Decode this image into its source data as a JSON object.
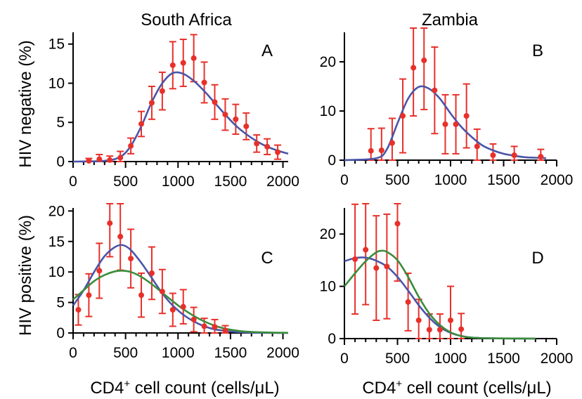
{
  "figure": {
    "col_titles": [
      "South Africa",
      "Zambia"
    ],
    "row_labels": [
      "HIV negative (%)",
      "HIV positive (%)"
    ],
    "xlabel_main": "CD4",
    "xlabel_sup": "+",
    "xlabel_rest": " cell count (cells/μL)"
  },
  "colors": {
    "points": "#e8302a",
    "fit_blue": "#4a55a8",
    "fit_green": "#3b8c3b",
    "axis": "#000000"
  },
  "chart_data": [
    {
      "panel": "A",
      "type": "scatter",
      "country": "South Africa",
      "group": "HIV negative",
      "xlim": [
        0,
        2050
      ],
      "ylim": [
        0,
        16.5
      ],
      "xticks": [
        0,
        500,
        1000,
        1500,
        2000
      ],
      "yticks": [
        0,
        5,
        10,
        15
      ],
      "points": [
        {
          "x": 150,
          "y": 0.1,
          "err": 0.3
        },
        {
          "x": 250,
          "y": 0.3,
          "err": 0.6
        },
        {
          "x": 350,
          "y": 0.2,
          "err": 0.5
        },
        {
          "x": 450,
          "y": 0.5,
          "err": 0.8
        },
        {
          "x": 550,
          "y": 2.0,
          "err": 1.0
        },
        {
          "x": 650,
          "y": 4.8,
          "err": 1.6
        },
        {
          "x": 750,
          "y": 7.5,
          "err": 2.1
        },
        {
          "x": 850,
          "y": 9.0,
          "err": 2.4
        },
        {
          "x": 950,
          "y": 12.3,
          "err": 3.0
        },
        {
          "x": 1050,
          "y": 12.6,
          "err": 3.0
        },
        {
          "x": 1150,
          "y": 13.2,
          "err": 3.0
        },
        {
          "x": 1250,
          "y": 10.1,
          "err": 2.6
        },
        {
          "x": 1350,
          "y": 7.6,
          "err": 2.2
        },
        {
          "x": 1450,
          "y": 6.0,
          "err": 2.0
        },
        {
          "x": 1550,
          "y": 5.4,
          "err": 1.9
        },
        {
          "x": 1650,
          "y": 4.5,
          "err": 1.7
        },
        {
          "x": 1750,
          "y": 2.3,
          "err": 1.1
        },
        {
          "x": 1850,
          "y": 1.9,
          "err": 1.0
        },
        {
          "x": 1950,
          "y": 1.2,
          "err": 0.9
        }
      ],
      "fits": [
        {
          "color": "blue",
          "points": [
            [
              0,
              0
            ],
            [
              300,
              0.1
            ],
            [
              450,
              0.6
            ],
            [
              550,
              2.0
            ],
            [
              650,
              4.5
            ],
            [
              750,
              7.6
            ],
            [
              850,
              10.0
            ],
            [
              950,
              11.3
            ],
            [
              1050,
              11.2
            ],
            [
              1150,
              10.3
            ],
            [
              1250,
              9.0
            ],
            [
              1350,
              7.5
            ],
            [
              1450,
              6.0
            ],
            [
              1550,
              4.6
            ],
            [
              1650,
              3.5
            ],
            [
              1750,
              2.6
            ],
            [
              1850,
              1.9
            ],
            [
              1950,
              1.4
            ],
            [
              2050,
              1.0
            ]
          ]
        }
      ]
    },
    {
      "panel": "B",
      "type": "scatter",
      "country": "Zambia",
      "group": "HIV negative",
      "xlim": [
        0,
        2000
      ],
      "ylim": [
        0,
        26
      ],
      "xticks": [
        0,
        500,
        1000,
        1500,
        2000
      ],
      "yticks": [
        0,
        10,
        20
      ],
      "points": [
        {
          "x": 250,
          "y": 1.9,
          "err": 4.5
        },
        {
          "x": 350,
          "y": 2.0,
          "err": 4.5
        },
        {
          "x": 450,
          "y": 3.5,
          "err": 5.0
        },
        {
          "x": 550,
          "y": 9.0,
          "err": 7.5
        },
        {
          "x": 650,
          "y": 18.8,
          "err": 9.8
        },
        {
          "x": 750,
          "y": 20.3,
          "err": 10.0
        },
        {
          "x": 850,
          "y": 14.2,
          "err": 8.8
        },
        {
          "x": 950,
          "y": 7.3,
          "err": 6.0
        },
        {
          "x": 1050,
          "y": 7.3,
          "err": 6.0
        },
        {
          "x": 1150,
          "y": 9.0,
          "err": 6.5
        },
        {
          "x": 1250,
          "y": 2.8,
          "err": 3.5
        },
        {
          "x": 1400,
          "y": 1.0,
          "err": 2.3
        },
        {
          "x": 1600,
          "y": 1.0,
          "err": 1.8
        },
        {
          "x": 1850,
          "y": 0.7,
          "err": 1.5
        }
      ],
      "fits": [
        {
          "color": "blue",
          "points": [
            [
              0,
              0
            ],
            [
              300,
              0.4
            ],
            [
              400,
              2.2
            ],
            [
              500,
              7.5
            ],
            [
              600,
              12.5
            ],
            [
              700,
              14.9
            ],
            [
              800,
              14.5
            ],
            [
              900,
              12.5
            ],
            [
              1000,
              9.5
            ],
            [
              1100,
              6.8
            ],
            [
              1200,
              4.7
            ],
            [
              1300,
              3.0
            ],
            [
              1400,
              2.0
            ],
            [
              1500,
              1.3
            ],
            [
              1600,
              0.9
            ],
            [
              1700,
              0.6
            ],
            [
              1800,
              0.5
            ],
            [
              1900,
              0.4
            ]
          ]
        }
      ]
    },
    {
      "panel": "C",
      "type": "scatter",
      "country": "South Africa",
      "group": "HIV positive",
      "xlim": [
        0,
        2050
      ],
      "ylim": [
        0,
        20.5
      ],
      "xticks": [
        0,
        500,
        1000,
        1500,
        2000
      ],
      "yticks": [
        0,
        5,
        10,
        15,
        20
      ],
      "points": [
        {
          "x": 50,
          "y": 3.8,
          "err": 2.5
        },
        {
          "x": 150,
          "y": 6.2,
          "err": 3.5
        },
        {
          "x": 250,
          "y": 10.2,
          "err": 4.5
        },
        {
          "x": 350,
          "y": 18.0,
          "err": 5.5
        },
        {
          "x": 450,
          "y": 15.8,
          "err": 5.5
        },
        {
          "x": 550,
          "y": 12.2,
          "err": 4.8
        },
        {
          "x": 650,
          "y": 6.2,
          "err": 3.6
        },
        {
          "x": 750,
          "y": 9.8,
          "err": 4.3
        },
        {
          "x": 850,
          "y": 6.8,
          "err": 3.6
        },
        {
          "x": 950,
          "y": 3.8,
          "err": 2.7
        },
        {
          "x": 1050,
          "y": 4.3,
          "err": 2.8
        },
        {
          "x": 1150,
          "y": 2.2,
          "err": 2.0
        },
        {
          "x": 1250,
          "y": 1.1,
          "err": 1.3
        },
        {
          "x": 1350,
          "y": 1.0,
          "err": 1.2
        },
        {
          "x": 1450,
          "y": 0.4,
          "err": 0.8
        }
      ],
      "fits": [
        {
          "color": "blue",
          "points": [
            [
              0,
              4.5
            ],
            [
              100,
              7.0
            ],
            [
              200,
              10.0
            ],
            [
              300,
              12.6
            ],
            [
              400,
              14.1
            ],
            [
              475,
              14.4
            ],
            [
              550,
              13.6
            ],
            [
              650,
              11.5
            ],
            [
              750,
              9.0
            ],
            [
              850,
              6.5
            ],
            [
              950,
              4.5
            ],
            [
              1050,
              3.0
            ],
            [
              1150,
              1.9
            ],
            [
              1250,
              1.1
            ],
            [
              1350,
              0.6
            ],
            [
              1500,
              0.25
            ],
            [
              1700,
              0.05
            ],
            [
              2050,
              0
            ]
          ]
        },
        {
          "color": "green",
          "points": [
            [
              0,
              5.5
            ],
            [
              100,
              7.0
            ],
            [
              200,
              8.5
            ],
            [
              300,
              9.5
            ],
            [
              400,
              10.1
            ],
            [
              475,
              10.2
            ],
            [
              550,
              10.0
            ],
            [
              650,
              9.2
            ],
            [
              750,
              8.0
            ],
            [
              850,
              6.6
            ],
            [
              950,
              5.2
            ],
            [
              1050,
              3.9
            ],
            [
              1150,
              2.8
            ],
            [
              1250,
              1.9
            ],
            [
              1350,
              1.2
            ],
            [
              1450,
              0.7
            ],
            [
              1600,
              0.3
            ],
            [
              1800,
              0.1
            ],
            [
              2050,
              0.02
            ]
          ]
        }
      ]
    },
    {
      "panel": "D",
      "type": "scatter",
      "country": "Zambia",
      "group": "HIV positive",
      "xlim": [
        0,
        2000
      ],
      "ylim": [
        0,
        25
      ],
      "xticks": [
        0,
        500,
        1000,
        1500,
        2000
      ],
      "yticks": [
        0,
        10,
        20
      ],
      "points": [
        {
          "x": 100,
          "y": 15.2,
          "err": 10.5
        },
        {
          "x": 200,
          "y": 17.0,
          "err": 10.5
        },
        {
          "x": 300,
          "y": 13.5,
          "err": 10.0
        },
        {
          "x": 400,
          "y": 13.8,
          "err": 10.0
        },
        {
          "x": 500,
          "y": 22.0,
          "err": 11.0
        },
        {
          "x": 600,
          "y": 7.0,
          "err": 5.5
        },
        {
          "x": 700,
          "y": 3.5,
          "err": 4.0
        },
        {
          "x": 800,
          "y": 1.7,
          "err": 3.0
        },
        {
          "x": 900,
          "y": 1.7,
          "err": 3.0
        },
        {
          "x": 1000,
          "y": 3.5,
          "err": 6.5
        },
        {
          "x": 1100,
          "y": 1.8,
          "err": 3.0
        }
      ],
      "fits": [
        {
          "color": "blue",
          "points": [
            [
              0,
              14.8
            ],
            [
              100,
              15.4
            ],
            [
              200,
              15.5
            ],
            [
              300,
              14.9
            ],
            [
              400,
              13.8
            ],
            [
              500,
              11.8
            ],
            [
              600,
              9.2
            ],
            [
              700,
              6.4
            ],
            [
              800,
              4.0
            ],
            [
              900,
              2.2
            ],
            [
              1000,
              1.1
            ],
            [
              1100,
              0.5
            ],
            [
              1200,
              0.2
            ],
            [
              1400,
              0.05
            ],
            [
              1800,
              0
            ]
          ]
        },
        {
          "color": "green",
          "points": [
            [
              0,
              10.0
            ],
            [
              100,
              12.5
            ],
            [
              200,
              14.8
            ],
            [
              300,
              16.5
            ],
            [
              350,
              16.8
            ],
            [
              400,
              16.6
            ],
            [
              500,
              15.0
            ],
            [
              600,
              11.8
            ],
            [
              700,
              8.0
            ],
            [
              800,
              4.8
            ],
            [
              900,
              2.6
            ],
            [
              1000,
              1.2
            ],
            [
              1100,
              0.5
            ],
            [
              1200,
              0.2
            ],
            [
              1400,
              0.05
            ],
            [
              1800,
              0
            ]
          ]
        }
      ]
    }
  ]
}
